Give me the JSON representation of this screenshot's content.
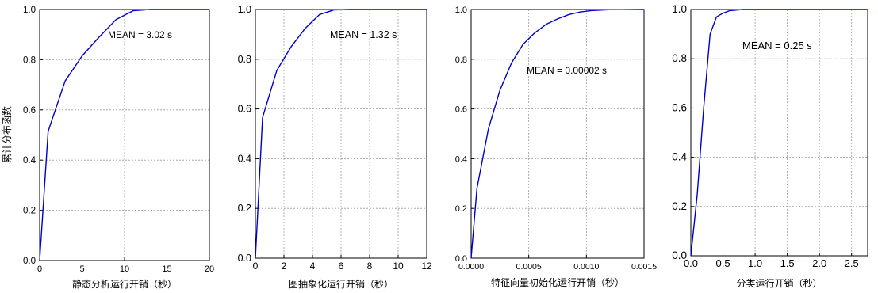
{
  "figure": {
    "ylabel": "累计分布函数"
  },
  "chart_data": [
    {
      "type": "line",
      "xlabel": "静态分析运行开销（秒）",
      "ylabel": "累计分布函数",
      "xlim": [
        0,
        20
      ],
      "ylim": [
        0,
        1
      ],
      "xticks": [
        0,
        5,
        10,
        15,
        20
      ],
      "xtick_labels": [
        "0",
        "5",
        "10",
        "15",
        "20"
      ],
      "yticks": [
        0,
        0.2,
        0.4,
        0.6,
        0.8,
        1.0
      ],
      "ytick_labels": [
        "0.0",
        "0.2",
        "0.4",
        "0.6",
        "0.8",
        "1.0"
      ],
      "grid": true,
      "annotation": "MEAN = 3.02 s",
      "x": [
        0,
        1,
        3,
        5,
        7,
        9,
        11,
        13,
        15,
        17,
        20
      ],
      "y": [
        0,
        0.515,
        0.715,
        0.815,
        0.89,
        0.96,
        0.995,
        1.0,
        1.0,
        1.0,
        1.0
      ]
    },
    {
      "type": "line",
      "xlabel": "图抽象化运行开销（秒）",
      "xlim": [
        0,
        12
      ],
      "ylim": [
        0,
        1
      ],
      "xticks": [
        0,
        2,
        4,
        6,
        8,
        10,
        12
      ],
      "xtick_labels": [
        "0",
        "2",
        "4",
        "6",
        "8",
        "10",
        "12"
      ],
      "yticks": [
        0,
        0.2,
        0.4,
        0.6,
        0.8,
        1.0
      ],
      "ytick_labels": [
        "0.0",
        "0.2",
        "0.4",
        "0.6",
        "0.8",
        "1.0"
      ],
      "grid": true,
      "annotation": "MEAN = 1.32 s",
      "x": [
        0,
        0.5,
        1.5,
        2.5,
        3.5,
        4.5,
        5.5,
        6.5,
        8,
        10,
        12
      ],
      "y": [
        0,
        0.565,
        0.755,
        0.85,
        0.925,
        0.98,
        0.998,
        1.0,
        1.0,
        1.0,
        1.0
      ]
    },
    {
      "type": "line",
      "xlabel": "特征向量初始化运行开销（秒）",
      "xlim": [
        0,
        0.0015
      ],
      "ylim": [
        0,
        1
      ],
      "xticks": [
        0,
        0.0005,
        0.001,
        0.0015
      ],
      "xtick_labels": [
        "0.0000",
        "0.0005",
        "0.0010",
        "0.0015"
      ],
      "yticks": [
        0,
        0.2,
        0.4,
        0.6,
        0.8,
        1.0
      ],
      "ytick_labels": [
        "0.0",
        "0.2",
        "0.4",
        "0.6",
        "0.8",
        "1.0"
      ],
      "grid": true,
      "annotation": "MEAN = 0.00002 s",
      "x": [
        0,
        5e-05,
        0.00015,
        0.00025,
        0.00035,
        0.00045,
        0.00055,
        0.00065,
        0.00075,
        0.00085,
        0.00095,
        0.00105,
        0.0012,
        0.0015
      ],
      "y": [
        0,
        0.28,
        0.52,
        0.675,
        0.785,
        0.86,
        0.905,
        0.94,
        0.962,
        0.98,
        0.99,
        0.996,
        0.999,
        1.0
      ]
    },
    {
      "type": "line",
      "xlabel": "分类运行开销（秒）",
      "xlim": [
        0,
        2.75
      ],
      "ylim": [
        0,
        1
      ],
      "xticks": [
        0,
        0.5,
        1.0,
        1.5,
        2.0,
        2.5
      ],
      "xtick_labels": [
        "0.0",
        "0.5",
        "1.0",
        "1.5",
        "2.0",
        "2.5"
      ],
      "yticks": [
        0,
        0.2,
        0.4,
        0.6,
        0.8,
        1.0
      ],
      "ytick_labels": [
        "0.0",
        "0.2",
        "0.4",
        "0.6",
        "0.8",
        "1.0"
      ],
      "grid": true,
      "annotation": "MEAN = 0.25 s",
      "x": [
        0,
        0.1,
        0.2,
        0.3,
        0.4,
        0.5,
        0.6,
        0.8,
        1.0,
        1.5,
        2.0,
        2.75
      ],
      "y": [
        0,
        0.25,
        0.6,
        0.9,
        0.97,
        0.985,
        0.995,
        1.0,
        1.0,
        1.0,
        1.0,
        1.0
      ]
    }
  ],
  "colors": {
    "line": "#0000cc",
    "grid": "#9a9a9a",
    "axis": "#000000"
  }
}
